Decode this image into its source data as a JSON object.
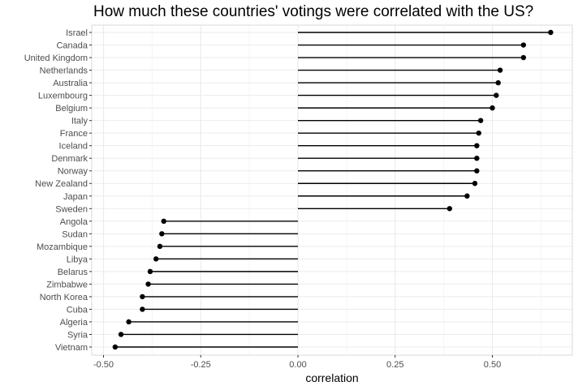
{
  "chart_data": {
    "type": "lollipop",
    "title": "How much these countries' votings were correlated with the US?",
    "xlabel": "correlation",
    "ylabel": "",
    "xlim": [
      -0.5,
      0.7
    ],
    "xticks": [
      -0.5,
      -0.25,
      0.0,
      0.25,
      0.5
    ],
    "xtick_labels": [
      "-0.50",
      "-0.25",
      "0.00",
      "0.25",
      "0.50"
    ],
    "grid": true,
    "legend": "none",
    "categories": [
      "Israel",
      "Canada",
      "United Kingdom",
      "Netherlands",
      "Australia",
      "Luxembourg",
      "Belgium",
      "Italy",
      "France",
      "Iceland",
      "Denmark",
      "Norway",
      "New Zealand",
      "Japan",
      "Sweden",
      "Angola",
      "Sudan",
      "Mozambique",
      "Libya",
      "Belarus",
      "Zimbabwe",
      "North Korea",
      "Cuba",
      "Algeria",
      "Syria",
      "Vietnam"
    ],
    "values": [
      0.65,
      0.58,
      0.58,
      0.52,
      0.515,
      0.51,
      0.5,
      0.47,
      0.465,
      0.46,
      0.46,
      0.46,
      0.455,
      0.435,
      0.39,
      -0.345,
      -0.35,
      -0.355,
      -0.365,
      -0.38,
      -0.385,
      -0.4,
      -0.4,
      -0.435,
      -0.455,
      -0.47
    ],
    "colors": {
      "stem": "#000000",
      "point": "#000000",
      "panel": "#ffffff",
      "grid_major": "#ebebeb",
      "grid_minor": "#f5f5f5",
      "border": "#d9d9d9"
    }
  }
}
